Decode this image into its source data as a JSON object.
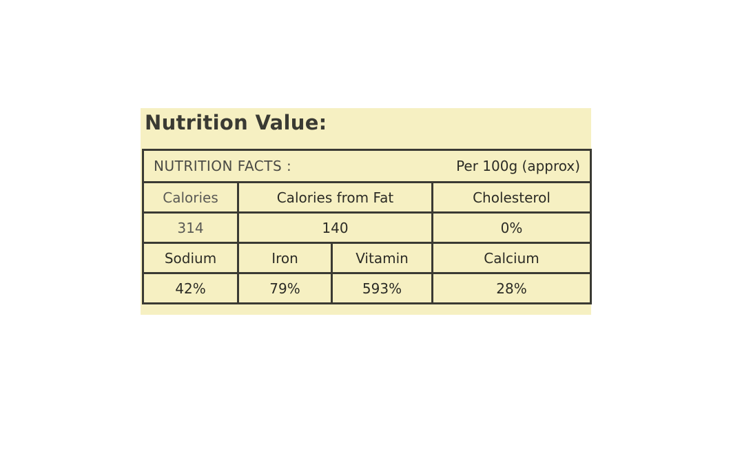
{
  "heading": "Nutrition Value:",
  "facts_label": "NUTRITION FACTS :",
  "per_serving": "Per 100g (approx)",
  "row1_headers": [
    "Calories",
    "Calories from Fat",
    "Cholesterol"
  ],
  "row1_values": [
    "314",
    "140",
    "0%"
  ],
  "row2_headers": [
    "Sodium",
    "Iron",
    "Vitamin",
    "Calcium"
  ],
  "row2_values": [
    "42%",
    "79%",
    "593%",
    "28%"
  ]
}
